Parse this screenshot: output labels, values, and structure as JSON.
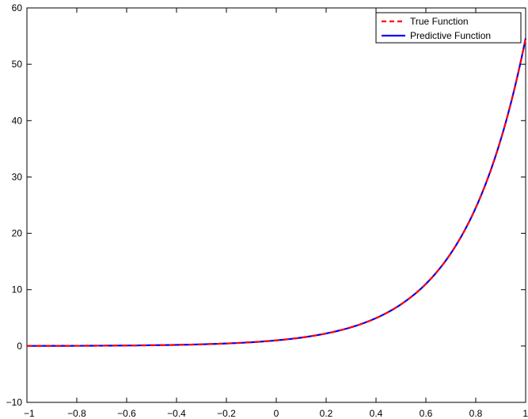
{
  "chart_data": {
    "type": "line",
    "title": "",
    "xlabel": "",
    "ylabel": "",
    "xlim": [
      -1,
      1
    ],
    "ylim": [
      -10,
      60
    ],
    "xticks": [
      -1,
      -0.8,
      -0.6,
      -0.4,
      -0.2,
      0,
      0.2,
      0.4,
      0.6,
      0.8,
      1
    ],
    "yticks": [
      -10,
      0,
      10,
      20,
      30,
      40,
      50,
      60
    ],
    "xtick_labels": [
      "−1",
      "−0.8",
      "−0.6",
      "−0.4",
      "−0.2",
      "0",
      "0.2",
      "0.4",
      "0.6",
      "0.8",
      "1"
    ],
    "ytick_labels": [
      "−10",
      "0",
      "10",
      "20",
      "30",
      "40",
      "50",
      "60"
    ],
    "grid": false,
    "legend_position": "top-right",
    "x": [
      -1,
      -0.9,
      -0.8,
      -0.7,
      -0.6,
      -0.5,
      -0.4,
      -0.3,
      -0.2,
      -0.1,
      0,
      0.1,
      0.2,
      0.3,
      0.4,
      0.5,
      0.6,
      0.7,
      0.8,
      0.9,
      1
    ],
    "series": [
      {
        "name": "True Function",
        "color": "#ff0000",
        "style": "dashed",
        "values": [
          0.02,
          0.03,
          0.04,
          0.06,
          0.09,
          0.14,
          0.2,
          0.3,
          0.45,
          0.67,
          1.0,
          1.49,
          2.23,
          3.32,
          4.95,
          7.39,
          11.02,
          16.44,
          24.53,
          36.6,
          54.6
        ]
      },
      {
        "name": "Predictive Function",
        "color": "#0000ff",
        "style": "solid",
        "values": [
          0.02,
          0.03,
          0.04,
          0.06,
          0.09,
          0.14,
          0.2,
          0.3,
          0.45,
          0.67,
          1.0,
          1.49,
          2.23,
          3.32,
          4.95,
          7.39,
          11.02,
          16.44,
          24.53,
          36.6,
          54.6
        ]
      }
    ]
  }
}
